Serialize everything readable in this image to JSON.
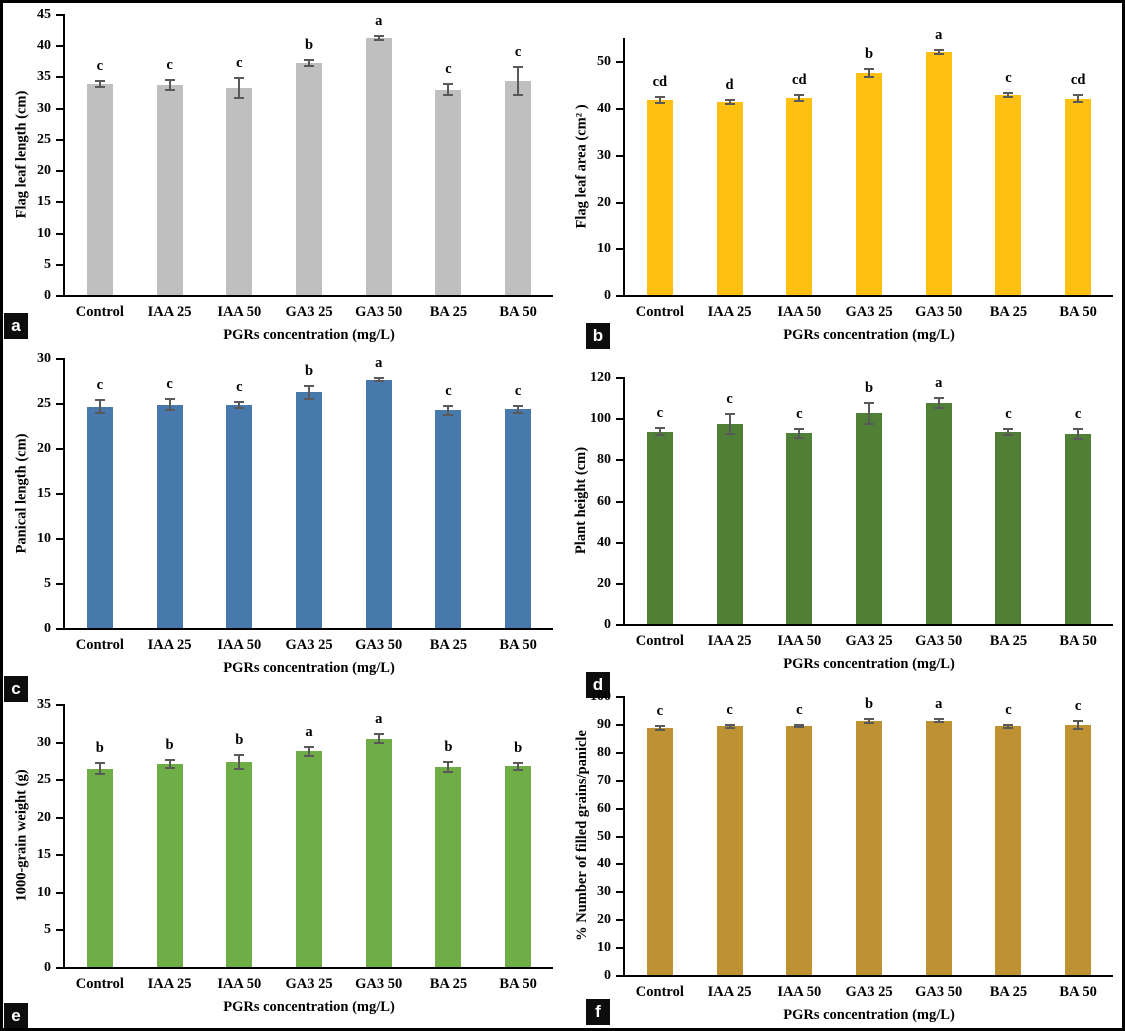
{
  "figure": {
    "description": "Six-panel bar chart figure showing effect of PGRs concentration on rice traits",
    "x_axis_label": "PGRs concentration (mg/L)",
    "error_bar_color": "#595959",
    "categories": [
      "Control",
      "IAA 25",
      "IAA 50",
      "GA3 25",
      "GA3 50",
      "BA 25",
      "BA 50"
    ]
  },
  "chart_data": [
    {
      "panel_label": "a",
      "type": "bar",
      "ylabel": "Flag leaf length (cm)",
      "xlabel": "PGRs concentration (mg/L)",
      "categories": [
        "Control",
        "IAA 25",
        "IAA 50",
        "GA3 25",
        "GA3 50",
        "BA 25",
        "BA 50"
      ],
      "values": [
        33.8,
        33.7,
        33.1,
        37.2,
        41.1,
        32.9,
        34.3
      ],
      "errors": [
        0.5,
        0.8,
        1.6,
        0.5,
        0.3,
        0.9,
        2.2
      ],
      "significance_letters": [
        "c",
        "c",
        "c",
        "b",
        "a",
        "c",
        "c"
      ],
      "bar_color": "#BFBFBF",
      "ylim": [
        0,
        45
      ],
      "yticks": [
        0,
        5,
        10,
        15,
        20,
        25,
        30,
        35,
        40,
        45
      ],
      "grid": false,
      "legend": false
    },
    {
      "panel_label": "b",
      "type": "bar",
      "ylabel": "Flag leaf area (cm² )",
      "xlabel": "PGRs concentration (mg/L)",
      "categories": [
        "Control",
        "IAA 25",
        "IAA 50",
        "GA3 25",
        "GA3 50",
        "BA 25",
        "BA 50"
      ],
      "values": [
        41.7,
        41.3,
        42.2,
        47.5,
        52.0,
        42.8,
        42.0
      ],
      "errors": [
        0.7,
        0.5,
        0.7,
        0.8,
        0.5,
        0.5,
        0.8
      ],
      "significance_letters": [
        "cd",
        "d",
        "cd",
        "b",
        "a",
        "c",
        "cd"
      ],
      "bar_color": "#FFC011",
      "ylim": [
        0,
        55
      ],
      "yticks": [
        0,
        10,
        20,
        30,
        40,
        50
      ],
      "grid": false,
      "legend": false
    },
    {
      "panel_label": "c",
      "type": "bar",
      "ylabel": "Panical length (cm)",
      "xlabel": "PGRs concentration (mg/L)",
      "categories": [
        "Control",
        "IAA 25",
        "IAA 50",
        "GA3 25",
        "GA3 50",
        "BA 25",
        "BA 50"
      ],
      "values": [
        24.6,
        24.8,
        24.8,
        26.2,
        27.6,
        24.2,
        24.3
      ],
      "errors": [
        0.7,
        0.6,
        0.3,
        0.7,
        0.2,
        0.5,
        0.4
      ],
      "significance_letters": [
        "c",
        "c",
        "c",
        "b",
        "a",
        "c",
        "c"
      ],
      "bar_color": "#4779AC",
      "ylim": [
        0,
        30
      ],
      "yticks": [
        0,
        5,
        10,
        15,
        20,
        25,
        30
      ],
      "grid": false,
      "legend": false
    },
    {
      "panel_label": "d",
      "type": "bar",
      "ylabel": "Plant height (cm)",
      "xlabel": "PGRs concentration (mg/L)",
      "categories": [
        "Control",
        "IAA 25",
        "IAA 50",
        "GA3 25",
        "GA3 50",
        "BA 25",
        "BA 50"
      ],
      "values": [
        93.5,
        97.2,
        92.6,
        102.3,
        107.5,
        93.3,
        92.3
      ],
      "errors": [
        1.5,
        4.8,
        2.2,
        5.2,
        2.5,
        1.5,
        2.2
      ],
      "significance_letters": [
        "c",
        "c",
        "c",
        "b",
        "a",
        "c",
        "c"
      ],
      "bar_color": "#4F8035",
      "ylim": [
        0,
        120
      ],
      "yticks": [
        0,
        20,
        40,
        60,
        80,
        100,
        120
      ],
      "grid": false,
      "legend": false
    },
    {
      "panel_label": "e",
      "type": "bar",
      "ylabel": "1000-grain weight (g)",
      "xlabel": "PGRs concentration (mg/L)",
      "categories": [
        "Control",
        "IAA 25",
        "IAA 50",
        "GA3 25",
        "GA3 50",
        "BA 25",
        "BA 50"
      ],
      "values": [
        26.4,
        27.0,
        27.3,
        28.7,
        30.4,
        26.6,
        26.7
      ],
      "errors": [
        0.7,
        0.5,
        0.9,
        0.6,
        0.6,
        0.7,
        0.5
      ],
      "significance_letters": [
        "b",
        "b",
        "b",
        "a",
        "a",
        "b",
        "b"
      ],
      "bar_color": "#6FAD46",
      "ylim": [
        0,
        35
      ],
      "yticks": [
        0,
        5,
        10,
        15,
        20,
        25,
        30,
        35
      ],
      "grid": false,
      "legend": false
    },
    {
      "panel_label": "f",
      "type": "bar",
      "ylabel": "% Number of filled grains/panicle",
      "xlabel": "PGRs concentration (mg/L)",
      "categories": [
        "Control",
        "IAA 25",
        "IAA 50",
        "GA3 25",
        "GA3 50",
        "BA 25",
        "BA 50"
      ],
      "values": [
        88.5,
        89.2,
        89.3,
        91.0,
        91.2,
        89.1,
        89.5
      ],
      "errors": [
        0.8,
        0.5,
        0.3,
        0.8,
        0.6,
        0.6,
        1.5
      ],
      "significance_letters": [
        "c",
        "c",
        "c",
        "b",
        "a",
        "c",
        "c"
      ],
      "bar_color": "#BE9132",
      "ylim": [
        0,
        100
      ],
      "yticks": [
        0,
        10,
        20,
        30,
        40,
        50,
        60,
        70,
        80,
        90,
        100
      ],
      "grid": false,
      "legend": false
    }
  ]
}
